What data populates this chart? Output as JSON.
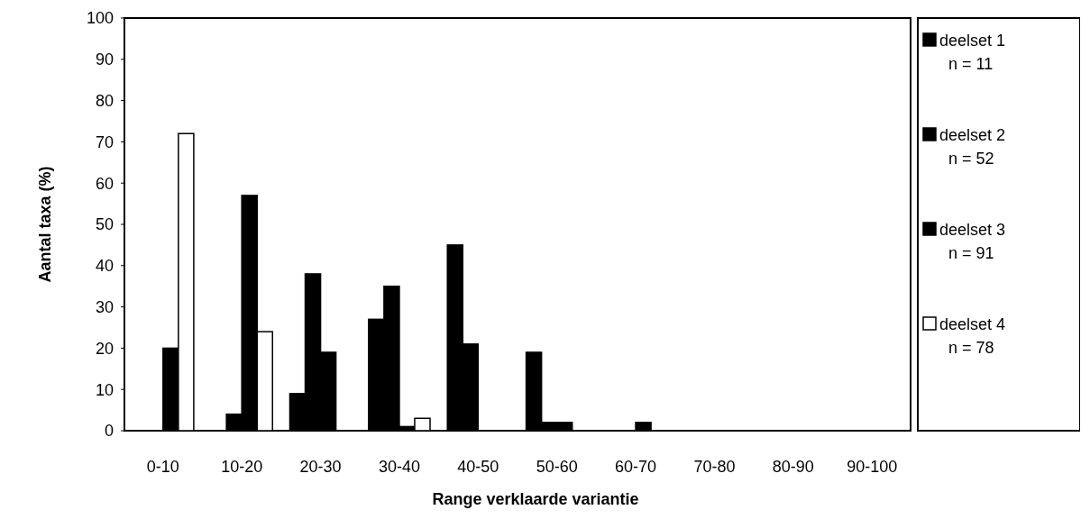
{
  "chart_data": {
    "type": "bar",
    "xlabel": "Range verklaarde variantie",
    "ylabel": "Aantal taxa (%)",
    "categories": [
      "0-10",
      "10-20",
      "20-30",
      "30-40",
      "40-50",
      "50-60",
      "60-70",
      "70-80",
      "80-90",
      "90-100"
    ],
    "series": [
      {
        "name": "deelset 1\nn = 11",
        "color": "#000000",
        "values": [
          0,
          0,
          9,
          27,
          45,
          19,
          0,
          0,
          0,
          0
        ]
      },
      {
        "name": "deelset 2\nn = 52",
        "color": "#000000",
        "values": [
          0,
          4,
          38,
          35,
          21,
          2,
          0,
          0,
          0,
          0
        ]
      },
      {
        "name": "deelset 3\nn = 91",
        "color": "#000000",
        "values": [
          20,
          57,
          19,
          1,
          0,
          2,
          2,
          0,
          0,
          0
        ]
      },
      {
        "name": "deelset 4\nn = 78",
        "color": "#ffffff",
        "values": [
          72,
          24,
          0,
          3,
          0,
          0,
          0,
          0,
          0,
          0
        ]
      }
    ],
    "ylim": [
      0,
      100
    ],
    "yticks": [
      0,
      10,
      20,
      30,
      40,
      50,
      60,
      70,
      80,
      90,
      100
    ],
    "grid": false,
    "legend": "right"
  }
}
